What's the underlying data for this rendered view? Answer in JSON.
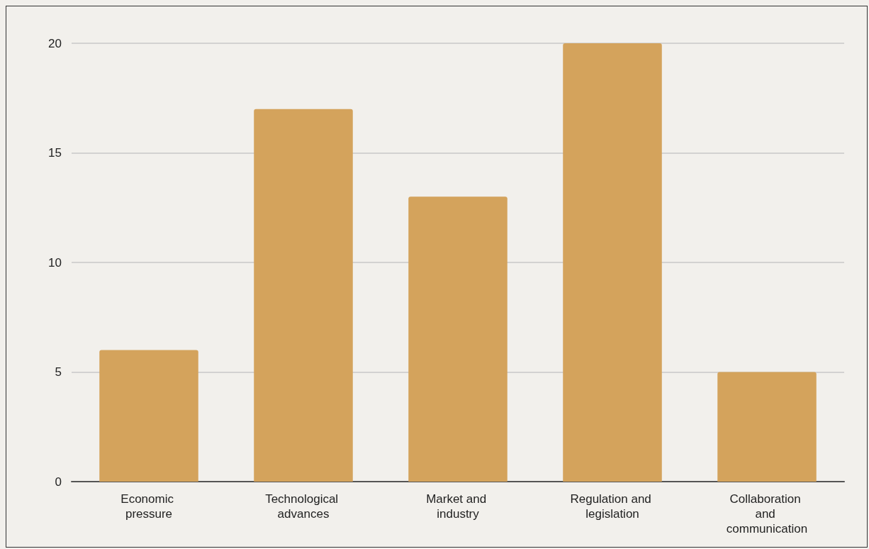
{
  "chart_data": {
    "type": "bar",
    "categories": [
      "Economic pressure",
      "Technological advances",
      "Market and industry",
      "Regulation and legislation",
      "Collaboration and communication"
    ],
    "values": [
      6,
      17,
      13,
      20,
      5
    ],
    "color": "#d4a35c",
    "ylim": [
      0,
      20
    ],
    "yticks": [
      0,
      5,
      10,
      15,
      20
    ],
    "grid": "y"
  }
}
